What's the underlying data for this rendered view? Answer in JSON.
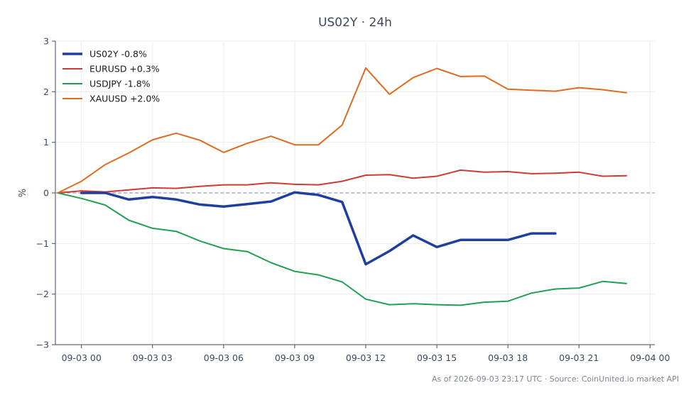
{
  "chart_data": {
    "type": "line",
    "title": "US02Y · 24h",
    "ylabel": "%",
    "xlabel": "",
    "ylim": [
      -3,
      3
    ],
    "yticks": [
      {
        "v": 3,
        "label": "3"
      },
      {
        "v": 2,
        "label": "2"
      },
      {
        "v": 1,
        "label": "1"
      },
      {
        "v": 0,
        "label": "0"
      },
      {
        "v": -1,
        "label": "−1"
      },
      {
        "v": -2,
        "label": "−2"
      },
      {
        "v": -3,
        "label": "−3"
      }
    ],
    "xlim": [
      -1.1,
      24.2
    ],
    "xticks": [
      {
        "v": 0,
        "label": "09-03 00"
      },
      {
        "v": 3,
        "label": "09-03 03"
      },
      {
        "v": 6,
        "label": "09-03 06"
      },
      {
        "v": 9,
        "label": "09-03 09"
      },
      {
        "v": 12,
        "label": "09-03 12"
      },
      {
        "v": 15,
        "label": "09-03 15"
      },
      {
        "v": 18,
        "label": "09-03 18"
      },
      {
        "v": 21,
        "label": "09-03 21"
      },
      {
        "v": 24,
        "label": "09-04 00"
      }
    ],
    "grid": true,
    "legend_position": "top-left",
    "zero_line": true,
    "series": [
      {
        "name": "US02Y -0.8%",
        "color": "#1f3fa0",
        "width": 3.5,
        "x": [
          0,
          1,
          2,
          3,
          4,
          5,
          6,
          7,
          8,
          9,
          10,
          11,
          12,
          13,
          14,
          15,
          16,
          17,
          18,
          19,
          20
        ],
        "y": [
          0.0,
          0.0,
          -0.13,
          -0.08,
          -0.13,
          -0.23,
          -0.27,
          -0.22,
          -0.17,
          0.01,
          -0.04,
          -0.18,
          -1.41,
          -1.15,
          -0.84,
          -1.07,
          -0.93,
          -0.93,
          -0.93,
          -0.8,
          -0.8
        ]
      },
      {
        "name": "EURUSD +0.3%",
        "color": "#d03a34",
        "width": 2,
        "x": [
          -1,
          0,
          1,
          2,
          3,
          4,
          5,
          6,
          7,
          8,
          9,
          10,
          11,
          12,
          13,
          14,
          15,
          16,
          17,
          18,
          19,
          20,
          21,
          22,
          23
        ],
        "y": [
          0.0,
          0.04,
          0.02,
          0.06,
          0.1,
          0.09,
          0.13,
          0.16,
          0.16,
          0.2,
          0.17,
          0.16,
          0.23,
          0.35,
          0.36,
          0.29,
          0.33,
          0.45,
          0.41,
          0.42,
          0.38,
          0.39,
          0.41,
          0.33,
          0.34
        ]
      },
      {
        "name": "USDJPY -1.8%",
        "color": "#21a150",
        "width": 2,
        "x": [
          -1,
          0,
          1,
          2,
          3,
          4,
          5,
          6,
          7,
          8,
          9,
          10,
          11,
          12,
          13,
          14,
          15,
          16,
          17,
          18,
          19,
          20,
          21,
          22,
          23
        ],
        "y": [
          0.0,
          -0.11,
          -0.24,
          -0.54,
          -0.7,
          -0.76,
          -0.95,
          -1.1,
          -1.16,
          -1.38,
          -1.55,
          -1.62,
          -1.76,
          -2.1,
          -2.21,
          -2.19,
          -2.21,
          -2.22,
          -2.16,
          -2.14,
          -1.98,
          -1.9,
          -1.88,
          -1.75,
          -1.79
        ]
      },
      {
        "name": "XAUUSD +2.0%",
        "color": "#e06a1f",
        "width": 2,
        "x": [
          -1,
          0,
          1,
          2,
          3,
          4,
          5,
          6,
          7,
          8,
          9,
          10,
          11,
          12,
          13,
          14,
          15,
          16,
          17,
          18,
          19,
          20,
          21,
          22,
          23
        ],
        "y": [
          0.0,
          0.23,
          0.56,
          0.79,
          1.05,
          1.18,
          1.04,
          0.8,
          0.98,
          1.12,
          0.95,
          0.95,
          1.34,
          2.47,
          1.95,
          2.28,
          2.46,
          2.3,
          2.31,
          2.05,
          2.03,
          2.01,
          2.08,
          2.04,
          1.98
        ]
      }
    ]
  },
  "footer_text": "As of 2026-09-03 23:17 UTC · Source: CoinUnited.io market API"
}
